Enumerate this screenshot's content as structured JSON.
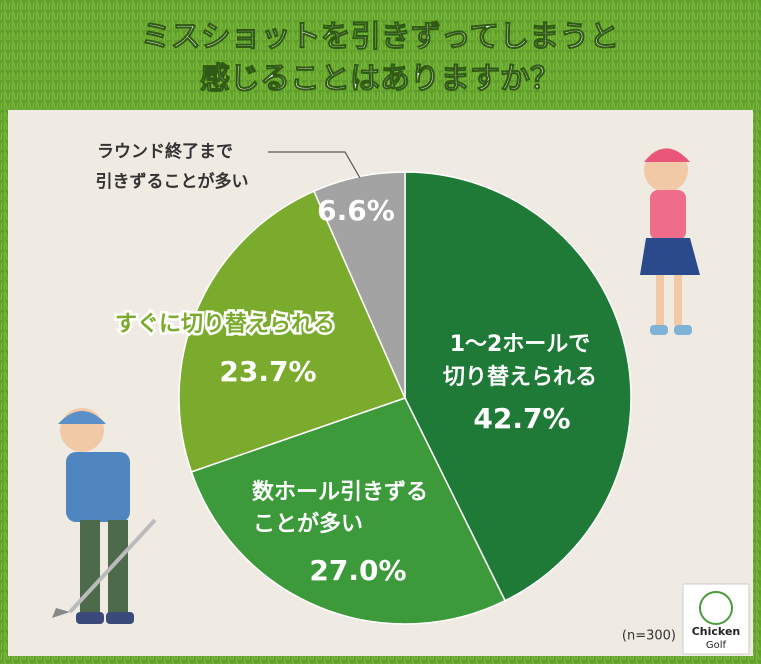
{
  "chart_data": {
    "type": "pie",
    "title": [
      "ミスショットを引きずってしまうと",
      "感じることはありますか？"
    ],
    "categories": [
      [
        "1〜2ホールで",
        "切り替えられる"
      ],
      [
        "数ホール引きずる",
        "ことが多い"
      ],
      [
        "すぐに切り替えられる"
      ],
      [
        "ラウンド終了まで",
        "引きずることが多い"
      ]
    ],
    "values": [
      42.7,
      27.0,
      23.7,
      6.6
    ],
    "value_labels": [
      "42.7%",
      "27.0%",
      "23.7%",
      "6.6%"
    ],
    "colors": [
      "#1e7a36",
      "#3c9a3a",
      "#7bab2c",
      "#a3a3a3"
    ],
    "note": "(n=300)",
    "logo": [
      "Chicken",
      "Golf"
    ]
  }
}
